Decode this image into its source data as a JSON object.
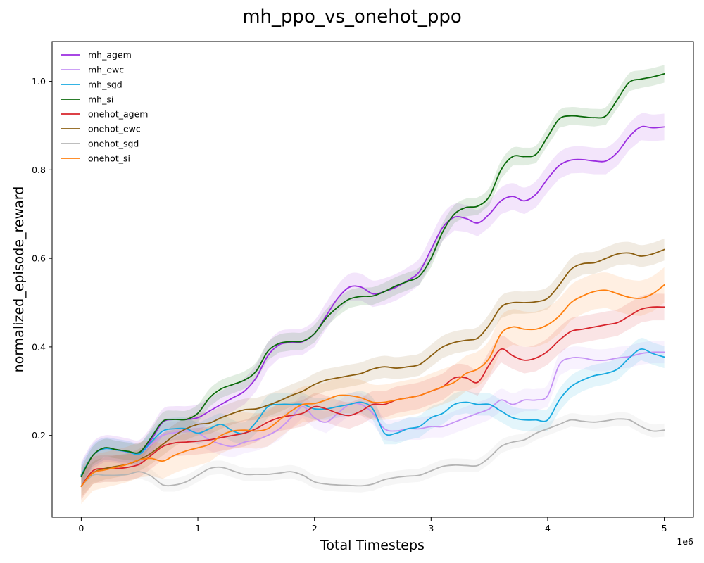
{
  "chart_data": {
    "type": "line",
    "title": "mh_ppo_vs_onehot_ppo",
    "xlabel": "Total Timesteps",
    "ylabel": "normalized_episode_reward",
    "x_offset_label": "1e6",
    "xlim": [
      -0.25,
      5.25
    ],
    "ylim": [
      0.015,
      1.09
    ],
    "x_ticks": [
      0,
      1,
      2,
      3,
      4,
      5
    ],
    "x_tick_labels": [
      "0",
      "1",
      "2",
      "3",
      "4",
      "5"
    ],
    "y_ticks": [
      0.2,
      0.4,
      0.6,
      0.8,
      1.0
    ],
    "y_tick_labels": [
      "0.2",
      "0.4",
      "0.6",
      "0.8",
      "1.0"
    ],
    "grid": false,
    "legend_position": "top-left",
    "x": [
      0,
      0.1,
      0.2,
      0.3,
      0.4,
      0.5,
      0.6,
      0.7,
      0.8,
      0.9,
      1.0,
      1.1,
      1.2,
      1.3,
      1.4,
      1.5,
      1.6,
      1.7,
      1.8,
      1.9,
      2.0,
      2.1,
      2.2,
      2.3,
      2.4,
      2.5,
      2.6,
      2.7,
      2.8,
      2.9,
      3.0,
      3.1,
      3.2,
      3.3,
      3.4,
      3.5,
      3.6,
      3.7,
      3.8,
      3.9,
      4.0,
      4.1,
      4.2,
      4.3,
      4.4,
      4.5,
      4.6,
      4.7,
      4.8,
      4.9,
      5.0
    ],
    "series": [
      {
        "name": "mh_agem",
        "color": "#9b2de0",
        "band": 0.03,
        "values": [
          0.11,
          0.155,
          0.17,
          0.168,
          0.163,
          0.16,
          0.19,
          0.23,
          0.236,
          0.236,
          0.24,
          0.255,
          0.27,
          0.285,
          0.3,
          0.33,
          0.38,
          0.405,
          0.41,
          0.412,
          0.43,
          0.47,
          0.51,
          0.535,
          0.535,
          0.52,
          0.525,
          0.535,
          0.55,
          0.57,
          0.62,
          0.67,
          0.693,
          0.69,
          0.68,
          0.7,
          0.73,
          0.74,
          0.73,
          0.745,
          0.78,
          0.81,
          0.822,
          0.823,
          0.82,
          0.82,
          0.84,
          0.875,
          0.897,
          0.895,
          0.897
        ]
      },
      {
        "name": "mh_ewc",
        "color": "#c593f5",
        "band": 0.025,
        "values": [
          0.11,
          0.155,
          0.17,
          0.167,
          0.162,
          0.158,
          0.18,
          0.2,
          0.206,
          0.21,
          0.205,
          0.19,
          0.18,
          0.175,
          0.185,
          0.19,
          0.2,
          0.215,
          0.24,
          0.265,
          0.24,
          0.23,
          0.25,
          0.27,
          0.27,
          0.25,
          0.215,
          0.21,
          0.215,
          0.215,
          0.22,
          0.22,
          0.23,
          0.24,
          0.25,
          0.26,
          0.28,
          0.27,
          0.28,
          0.28,
          0.29,
          0.36,
          0.375,
          0.375,
          0.37,
          0.37,
          0.375,
          0.378,
          0.385,
          0.388,
          0.388
        ]
      },
      {
        "name": "mh_sgd",
        "color": "#17a9e0",
        "band": 0.025,
        "values": [
          0.11,
          0.155,
          0.17,
          0.167,
          0.163,
          0.158,
          0.185,
          0.21,
          0.215,
          0.215,
          0.205,
          0.215,
          0.225,
          0.21,
          0.205,
          0.23,
          0.265,
          0.27,
          0.27,
          0.27,
          0.26,
          0.26,
          0.265,
          0.27,
          0.275,
          0.26,
          0.205,
          0.205,
          0.215,
          0.22,
          0.24,
          0.25,
          0.27,
          0.275,
          0.27,
          0.27,
          0.255,
          0.24,
          0.235,
          0.235,
          0.235,
          0.28,
          0.31,
          0.325,
          0.335,
          0.34,
          0.35,
          0.375,
          0.395,
          0.385,
          0.377
        ]
      },
      {
        "name": "mh_si",
        "color": "#0b6a0b",
        "band": 0.02,
        "values": [
          0.107,
          0.155,
          0.172,
          0.168,
          0.164,
          0.162,
          0.195,
          0.232,
          0.236,
          0.236,
          0.25,
          0.285,
          0.305,
          0.315,
          0.325,
          0.345,
          0.39,
          0.408,
          0.412,
          0.413,
          0.43,
          0.465,
          0.49,
          0.508,
          0.514,
          0.515,
          0.525,
          0.538,
          0.548,
          0.56,
          0.6,
          0.66,
          0.7,
          0.715,
          0.718,
          0.74,
          0.8,
          0.83,
          0.83,
          0.835,
          0.875,
          0.915,
          0.922,
          0.92,
          0.918,
          0.922,
          0.96,
          0.998,
          1.005,
          1.01,
          1.017
        ]
      },
      {
        "name": "onehot_agem",
        "color": "#d7242c",
        "band": 0.03,
        "values": [
          0.085,
          0.12,
          0.125,
          0.125,
          0.128,
          0.135,
          0.155,
          0.175,
          0.183,
          0.185,
          0.187,
          0.19,
          0.195,
          0.2,
          0.205,
          0.215,
          0.23,
          0.24,
          0.245,
          0.25,
          0.265,
          0.26,
          0.25,
          0.245,
          0.255,
          0.27,
          0.27,
          0.28,
          0.285,
          0.29,
          0.3,
          0.31,
          0.33,
          0.33,
          0.32,
          0.36,
          0.395,
          0.38,
          0.37,
          0.375,
          0.39,
          0.415,
          0.435,
          0.44,
          0.445,
          0.45,
          0.455,
          0.47,
          0.485,
          0.49,
          0.49
        ]
      },
      {
        "name": "onehot_ewc",
        "color": "#8b5e10",
        "band": 0.025,
        "values": [
          0.085,
          0.115,
          0.125,
          0.13,
          0.135,
          0.145,
          0.16,
          0.18,
          0.2,
          0.215,
          0.225,
          0.228,
          0.24,
          0.25,
          0.258,
          0.26,
          0.268,
          0.278,
          0.29,
          0.3,
          0.315,
          0.325,
          0.33,
          0.335,
          0.34,
          0.35,
          0.355,
          0.352,
          0.355,
          0.36,
          0.38,
          0.4,
          0.41,
          0.415,
          0.42,
          0.45,
          0.49,
          0.5,
          0.5,
          0.502,
          0.51,
          0.54,
          0.575,
          0.588,
          0.59,
          0.6,
          0.61,
          0.612,
          0.605,
          0.61,
          0.62
        ]
      },
      {
        "name": "onehot_sgd",
        "color": "#b4b4b4",
        "band": 0.015,
        "values": [
          0.085,
          0.11,
          0.11,
          0.11,
          0.112,
          0.118,
          0.108,
          0.088,
          0.088,
          0.095,
          0.11,
          0.125,
          0.128,
          0.12,
          0.112,
          0.112,
          0.112,
          0.115,
          0.118,
          0.11,
          0.095,
          0.09,
          0.088,
          0.087,
          0.086,
          0.09,
          0.1,
          0.105,
          0.108,
          0.11,
          0.12,
          0.13,
          0.133,
          0.132,
          0.132,
          0.15,
          0.175,
          0.185,
          0.19,
          0.205,
          0.215,
          0.225,
          0.235,
          0.232,
          0.23,
          0.233,
          0.237,
          0.235,
          0.22,
          0.21,
          0.212
        ]
      },
      {
        "name": "onehot_si",
        "color": "#ff7f0e",
        "band": 0.04,
        "values": [
          0.085,
          0.115,
          0.122,
          0.128,
          0.135,
          0.145,
          0.148,
          0.142,
          0.155,
          0.165,
          0.172,
          0.18,
          0.2,
          0.21,
          0.212,
          0.21,
          0.215,
          0.235,
          0.255,
          0.27,
          0.272,
          0.28,
          0.29,
          0.29,
          0.285,
          0.275,
          0.275,
          0.28,
          0.285,
          0.29,
          0.3,
          0.31,
          0.32,
          0.34,
          0.35,
          0.375,
          0.43,
          0.445,
          0.44,
          0.44,
          0.45,
          0.47,
          0.5,
          0.515,
          0.525,
          0.528,
          0.52,
          0.512,
          0.51,
          0.52,
          0.54
        ]
      }
    ]
  }
}
